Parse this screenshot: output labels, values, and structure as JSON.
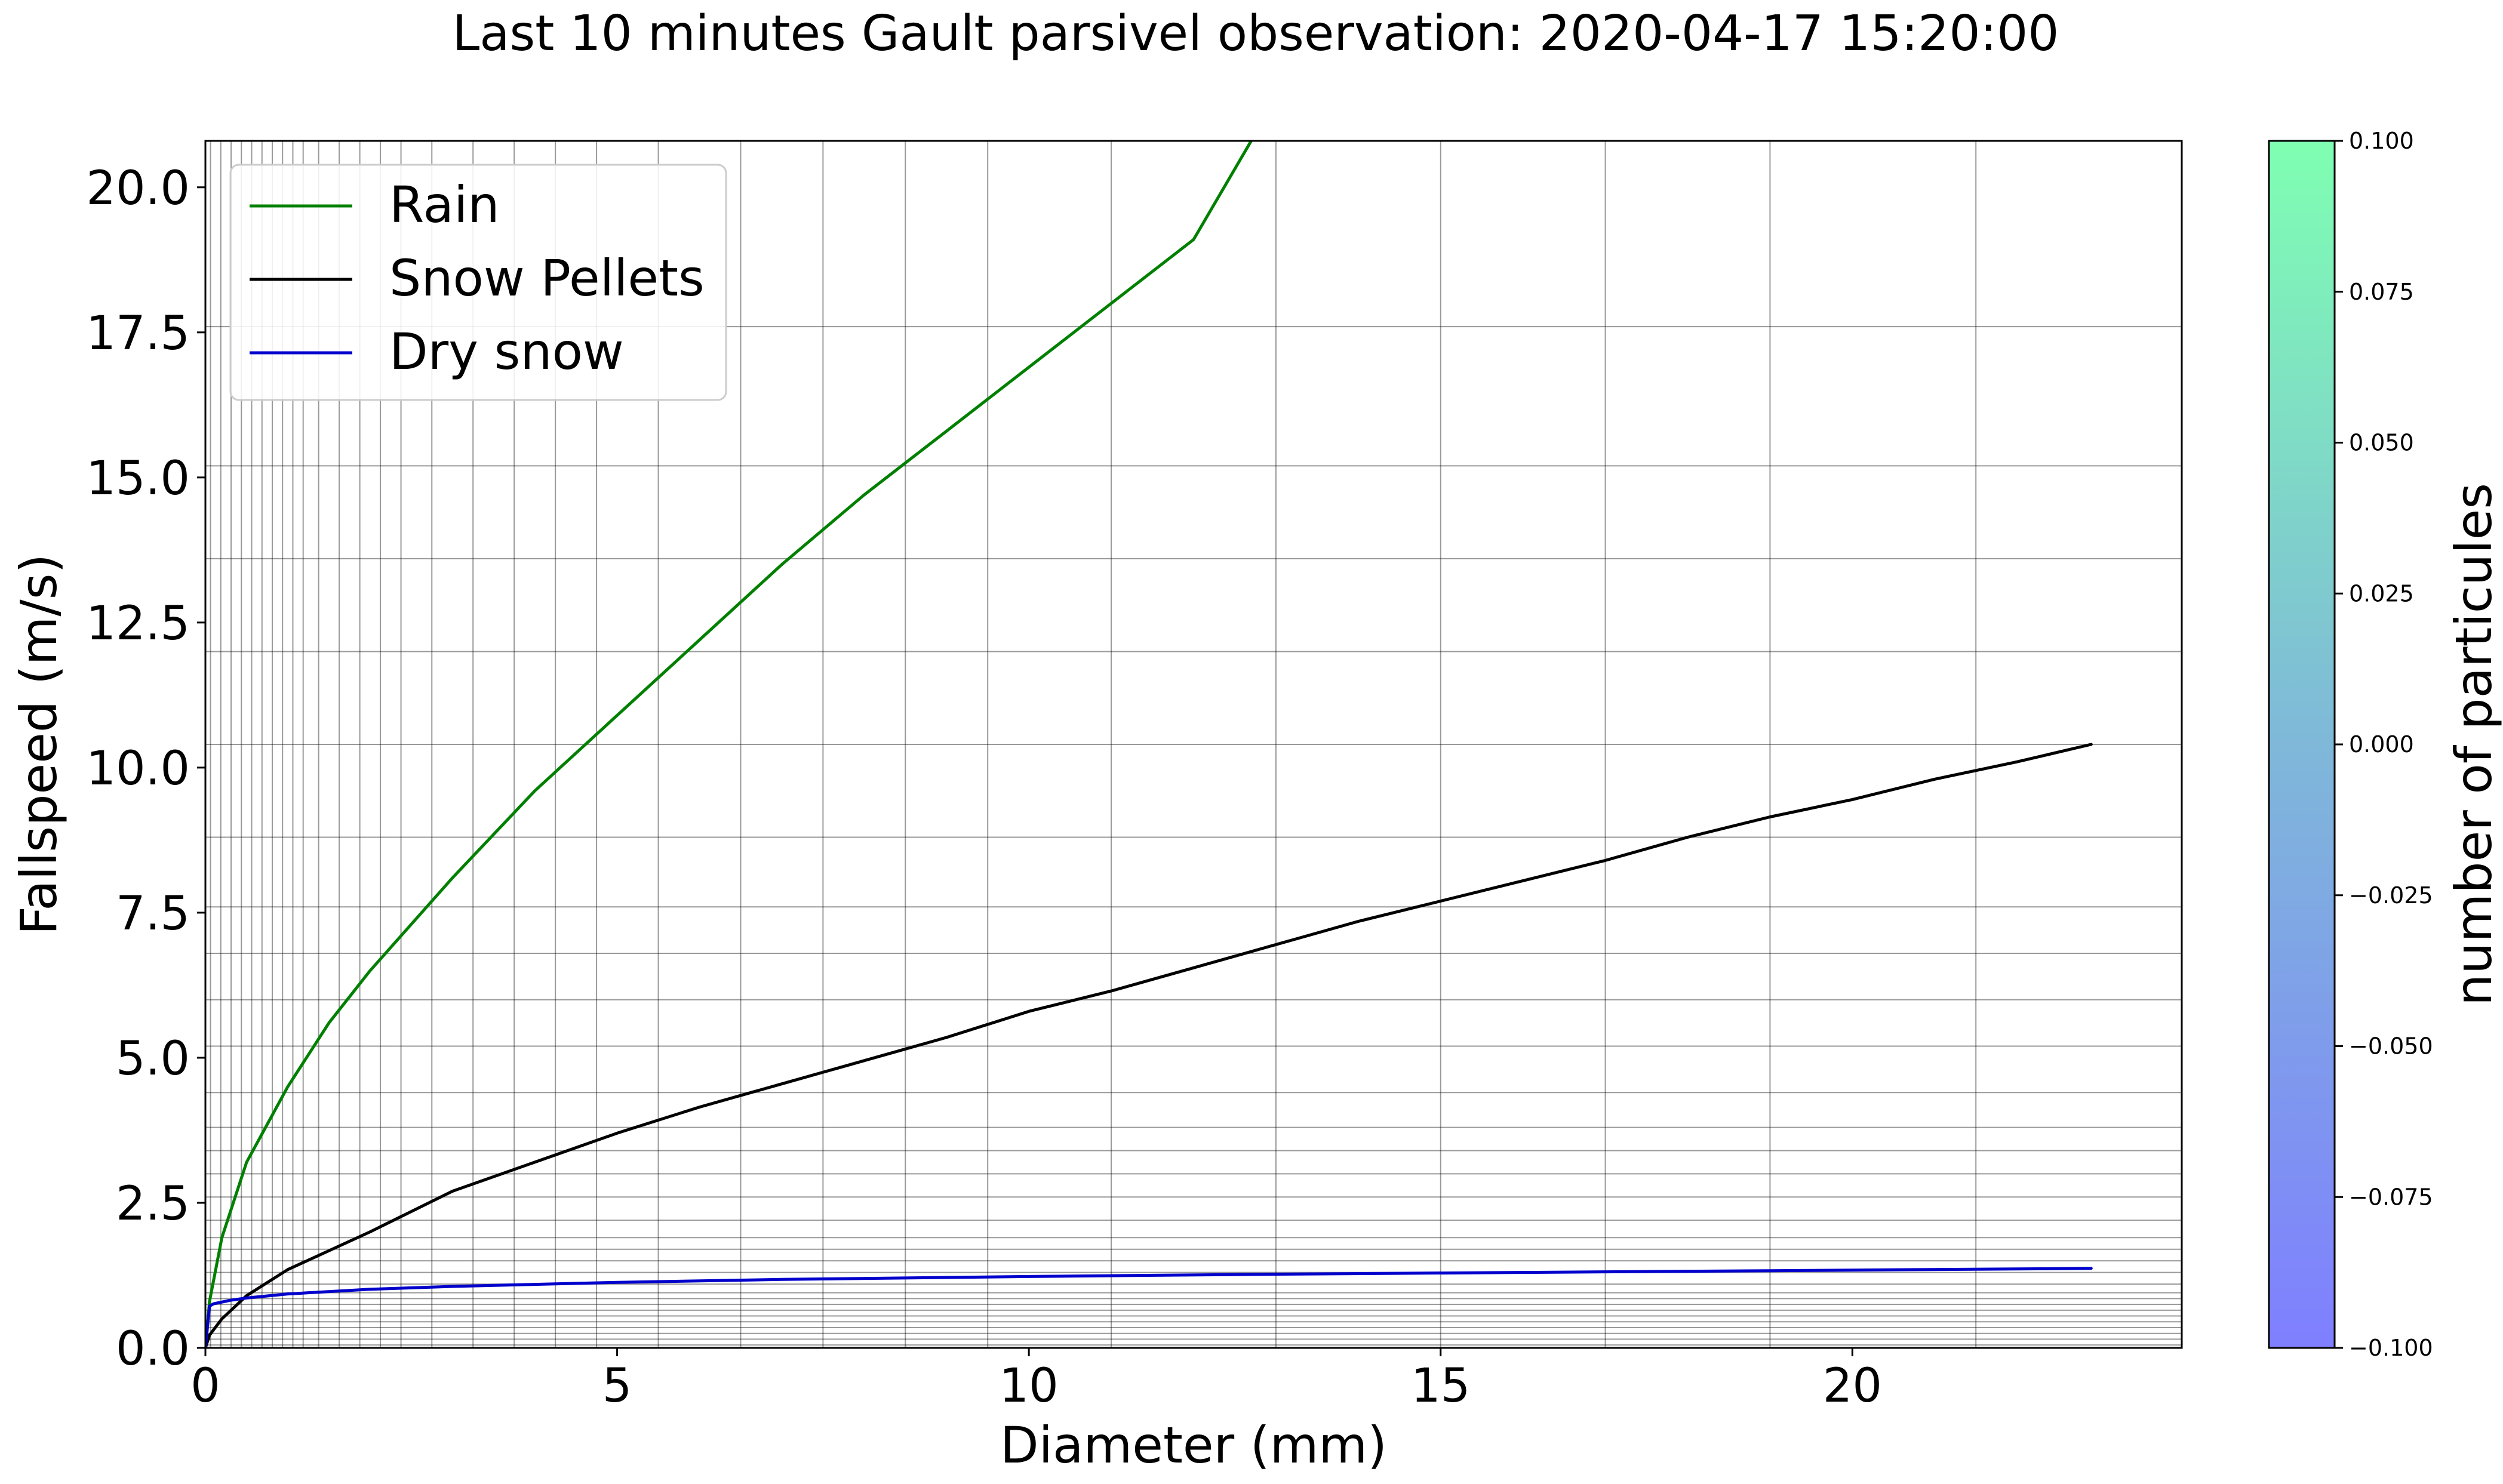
{
  "figure": {
    "title": "Last 10 minutes Gault parsivel observation: 2020-04-17 15:20:00"
  },
  "chart_data": {
    "type": "line",
    "title": "Last 10 minutes Gault parsivel observation: 2020-04-17 15:20:00",
    "xlabel": "Diameter (mm)",
    "ylabel": "Fallspeed (m/s)",
    "xlim": [
      0,
      24
    ],
    "ylim": [
      0,
      20.8
    ],
    "x_ticks": [
      0,
      5,
      10,
      15,
      20
    ],
    "x_tick_labels": [
      "0",
      "5",
      "10",
      "15",
      "20"
    ],
    "y_ticks": [
      0,
      2.5,
      5,
      7.5,
      10,
      12.5,
      15,
      17.5,
      20
    ],
    "y_tick_labels": [
      "0.0",
      "2.5",
      "5.0",
      "7.5",
      "10.0",
      "12.5",
      "15.0",
      "17.5",
      "20.0"
    ],
    "grid": true,
    "legend_position": "top-left",
    "x_grid_lines": [
      0.062,
      0.187,
      0.312,
      0.437,
      0.562,
      0.687,
      0.812,
      0.937,
      1.062,
      1.187,
      1.375,
      1.625,
      1.875,
      2.125,
      2.375,
      2.75,
      3.25,
      3.75,
      4.25,
      4.75,
      5.5,
      6.5,
      7.5,
      8.5,
      9.5,
      11,
      13,
      15,
      17,
      19,
      21.5,
      24.5
    ],
    "y_grid_lines": [
      0.05,
      0.15,
      0.25,
      0.35,
      0.45,
      0.55,
      0.65,
      0.75,
      0.85,
      0.95,
      1.1,
      1.3,
      1.5,
      1.7,
      1.9,
      2.2,
      2.6,
      3.0,
      3.4,
      3.8,
      4.4,
      5.2,
      6.0,
      6.8,
      7.6,
      8.8,
      10.4,
      12.0,
      13.6,
      15.2,
      17.6,
      20.8
    ],
    "series": [
      {
        "name": "Rain",
        "color": "#008000",
        "x": [
          0,
          0.05,
          0.2,
          0.5,
          1,
          1.5,
          2,
          3,
          4,
          5,
          6,
          7,
          8,
          9,
          10,
          11,
          12,
          12.7
        ],
        "y": [
          0,
          0.8,
          1.9,
          3.2,
          4.5,
          5.6,
          6.5,
          8.1,
          9.6,
          10.9,
          12.2,
          13.5,
          14.7,
          15.8,
          16.9,
          18.0,
          19.1,
          20.8
        ]
      },
      {
        "name": "Snow Pellets",
        "color": "#000000",
        "x": [
          0,
          0.05,
          0.2,
          0.5,
          1,
          2,
          3,
          4,
          5,
          6,
          7,
          8,
          9,
          10,
          11,
          12,
          13,
          14,
          15,
          16,
          17,
          18,
          19,
          20,
          21,
          22,
          22.9
        ],
        "y": [
          0,
          0.22,
          0.5,
          0.9,
          1.35,
          2.0,
          2.7,
          3.2,
          3.7,
          4.15,
          4.55,
          4.95,
          5.35,
          5.8,
          6.15,
          6.55,
          6.95,
          7.35,
          7.7,
          8.05,
          8.4,
          8.8,
          9.15,
          9.45,
          9.8,
          10.1,
          10.4
        ]
      },
      {
        "name": "Dry snow",
        "color": "#0000cc",
        "x": [
          0,
          0.05,
          0.1,
          0.3,
          0.5,
          1,
          2,
          3,
          5,
          7,
          10,
          13,
          16,
          19,
          22.9
        ],
        "y": [
          0,
          0.72,
          0.76,
          0.82,
          0.86,
          0.93,
          1.01,
          1.06,
          1.13,
          1.18,
          1.23,
          1.27,
          1.3,
          1.33,
          1.37
        ]
      }
    ],
    "colorbar": {
      "label": "number of particules",
      "ticks": [
        0.1,
        0.075,
        0.05,
        0.025,
        0.0,
        -0.025,
        -0.05,
        -0.075,
        -0.1
      ],
      "tick_labels": [
        "0.100",
        "0.075",
        "0.050",
        "0.025",
        "0.000",
        "−0.025",
        "−0.050",
        "−0.075",
        "−0.100"
      ],
      "color_top": "#7fffb2",
      "color_mid": "#7fb8d9",
      "color_bottom": "#7f7fff"
    }
  }
}
